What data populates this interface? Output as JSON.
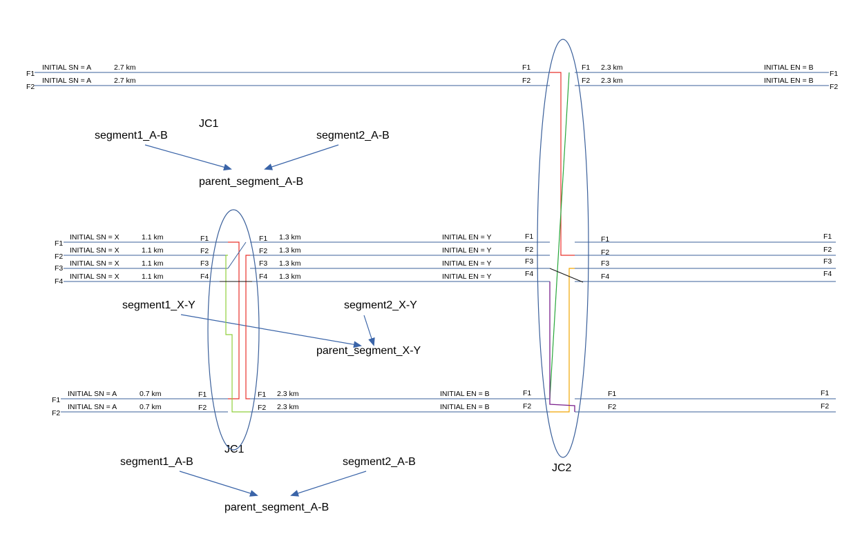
{
  "top_group": {
    "left": {
      "rows": [
        {
          "side_label": "F1",
          "info": "INITIAL SN = A",
          "dist": "2.7 km",
          "end_label": "F1"
        },
        {
          "side_label": "F2",
          "info": "INITIAL SN = A",
          "dist": "2.7 km",
          "end_label": "F2"
        }
      ]
    },
    "right": {
      "rows": [
        {
          "start_label": "F1",
          "dist": "2.3 km",
          "info": "INITIAL EN = B",
          "side_label": "F1"
        },
        {
          "start_label": "F2",
          "dist": "2.3 km",
          "info": "INITIAL EN = B",
          "side_label": "F2"
        }
      ]
    },
    "jc_label": "JC1",
    "seg1": "segment1_A-B",
    "seg2": "segment2_A-B",
    "parent": "parent_segment_A-B"
  },
  "mid_group": {
    "left": {
      "rows": [
        {
          "side_label": "F1",
          "info": "INITIAL SN = X",
          "dist": "1.1 km",
          "end_label": "F1"
        },
        {
          "side_label": "F2",
          "info": "INITIAL SN = X",
          "dist": "1.1 km",
          "end_label": "F2"
        },
        {
          "side_label": "F3",
          "info": "INITIAL SN = X",
          "dist": "1.1 km",
          "end_label": "F3"
        },
        {
          "side_label": "F4",
          "info": "INITIAL SN = X",
          "dist": "1.1 km",
          "end_label": "F4"
        }
      ]
    },
    "middle": {
      "rows": [
        {
          "start_label": "F1",
          "dist": "1.3 km",
          "info": "INITIAL EN = Y",
          "end_label": "F1"
        },
        {
          "start_label": "F2",
          "dist": "1.3 km",
          "info": "INITIAL EN = Y",
          "end_label": "F2"
        },
        {
          "start_label": "F3",
          "dist": "1.3 km",
          "info": "INITIAL EN = Y",
          "end_label": "F3"
        },
        {
          "start_label": "F4",
          "dist": "1.3 km",
          "info": "INITIAL EN = Y",
          "end_label": "F4"
        }
      ]
    },
    "right": {
      "rows": [
        {
          "start_label": "F1",
          "side_label": "F1"
        },
        {
          "start_label": "F2",
          "side_label": "F2"
        },
        {
          "start_label": "F3",
          "side_label": "F3"
        },
        {
          "start_label": "F4",
          "side_label": "F4"
        }
      ]
    },
    "seg1": "segment1_X-Y",
    "seg2": "segment2_X-Y",
    "parent": "parent_segment_X-Y"
  },
  "bot_group": {
    "left": {
      "rows": [
        {
          "side_label": "F1",
          "info": "INITIAL SN = A",
          "dist": "0.7 km",
          "end_label": "F1"
        },
        {
          "side_label": "F2",
          "info": "INITIAL SN = A",
          "dist": "0.7 km",
          "end_label": "F2"
        }
      ]
    },
    "middle": {
      "rows": [
        {
          "start_label": "F1",
          "dist": "2.3 km",
          "info": "INITIAL EN = B",
          "end_label": "F1"
        },
        {
          "start_label": "F2",
          "dist": "2.3 km",
          "info": "INITIAL EN = B",
          "end_label": "F2"
        }
      ]
    },
    "right": {
      "rows": [
        {
          "start_label": "F1",
          "side_label": "F1"
        },
        {
          "start_label": "F2",
          "side_label": "F2"
        }
      ]
    },
    "jc1_label": "JC1",
    "jc2_label": "JC2",
    "seg1": "segment1_A-B",
    "seg2": "segment2_A-B",
    "parent": "parent_segment_A-B"
  },
  "colors": {
    "fiber": "#3a5f9a",
    "red": "#e8302a",
    "green": "#27a639",
    "lime": "#8fcf3a",
    "orange": "#f0a500",
    "purple": "#7a1f8c",
    "black": "#111111",
    "arrow": "#3a64a8"
  }
}
